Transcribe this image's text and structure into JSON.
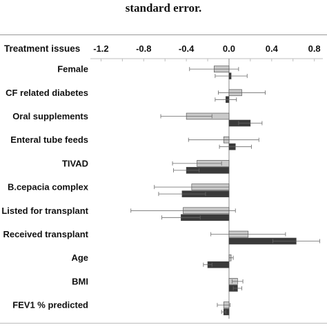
{
  "caption": "standard error.",
  "chart_data": {
    "type": "bar",
    "orientation": "horizontal",
    "header_label": "Treatment issues",
    "categories": [
      "Female",
      "CF related diabetes",
      "Oral supplements",
      "Enteral tube feeds",
      "TIVAD",
      "B.cepacia complex",
      "Listed for transplant",
      "Received transplant",
      "Age",
      "BMI",
      "FEV1 % predicted"
    ],
    "x_ticks": [
      "-1.2",
      "-0.8",
      "-0.4",
      "0.0",
      "0.4",
      "0.8"
    ],
    "xlim": [
      -1.3,
      0.88
    ],
    "series": [
      {
        "color": "#c9c9c9",
        "values": [
          -0.14,
          0.12,
          -0.4,
          -0.05,
          -0.3,
          -0.35,
          -0.43,
          0.18,
          0.02,
          0.08,
          -0.05
        ],
        "errors": [
          0.23,
          0.22,
          0.24,
          0.33,
          0.23,
          0.35,
          0.49,
          0.35,
          0.02,
          0.05,
          0.06
        ]
      },
      {
        "color": "#3a3a3a",
        "values": [
          0.02,
          -0.03,
          0.2,
          0.06,
          -0.4,
          -0.44,
          -0.45,
          0.63,
          -0.2,
          0.08,
          -0.05
        ],
        "errors": [
          0.15,
          0.1,
          0.11,
          0.15,
          0.12,
          0.22,
          0.18,
          0.22,
          0.04,
          0.04,
          0.02
        ]
      }
    ]
  }
}
